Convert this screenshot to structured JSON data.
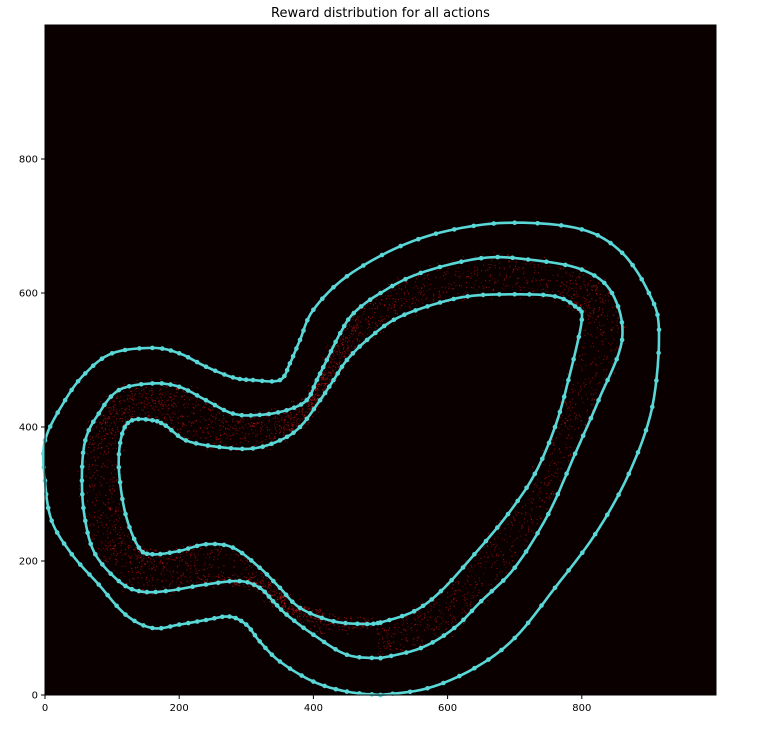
{
  "chart_data": {
    "type": "scatter",
    "title": "Reward distribution for all actions",
    "xlabel": "",
    "ylabel": "",
    "xlim": [
      0,
      1000
    ],
    "ylim": [
      0,
      1000
    ],
    "x_ticks": [
      0,
      200,
      400,
      600,
      800
    ],
    "y_ticks": [
      0,
      200,
      400,
      600,
      800
    ],
    "grid": false,
    "background_color": "#0b0000",
    "line_color": "#5ad8d8",
    "reward_color": "#ff1a1a",
    "series": [
      {
        "role": "outer boundary",
        "points": [
          [
            500,
            0
          ],
          [
            570,
            10
          ],
          [
            640,
            40
          ],
          [
            700,
            85
          ],
          [
            760,
            160
          ],
          [
            820,
            240
          ],
          [
            870,
            330
          ],
          [
            905,
            430
          ],
          [
            915,
            545
          ],
          [
            900,
            600
          ],
          [
            860,
            660
          ],
          [
            800,
            695
          ],
          [
            700,
            705
          ],
          [
            610,
            695
          ],
          [
            530,
            670
          ],
          [
            450,
            625
          ],
          [
            400,
            575
          ],
          [
            380,
            530
          ],
          [
            365,
            495
          ],
          [
            350,
            470
          ],
          [
            310,
            470
          ],
          [
            280,
            474
          ],
          [
            240,
            490
          ],
          [
            200,
            510
          ],
          [
            160,
            518
          ],
          [
            100,
            510
          ],
          [
            60,
            480
          ],
          [
            30,
            440
          ],
          [
            0,
            380
          ],
          [
            0,
            320
          ],
          [
            10,
            260
          ],
          [
            40,
            210
          ],
          [
            80,
            165
          ],
          [
            120,
            120
          ],
          [
            160,
            100
          ],
          [
            200,
            105
          ],
          [
            240,
            112
          ],
          [
            275,
            117
          ],
          [
            300,
            105
          ],
          [
            320,
            80
          ],
          [
            350,
            50
          ],
          [
            400,
            20
          ],
          [
            450,
            5
          ],
          [
            500,
            0
          ]
        ]
      },
      {
        "role": "center line",
        "points": [
          [
            500,
            55
          ],
          [
            560,
            70
          ],
          [
            610,
            100
          ],
          [
            650,
            140
          ],
          [
            700,
            190
          ],
          [
            750,
            270
          ],
          [
            790,
            360
          ],
          [
            825,
            440
          ],
          [
            860,
            530
          ],
          [
            845,
            600
          ],
          [
            800,
            635
          ],
          [
            720,
            650
          ],
          [
            650,
            652
          ],
          [
            560,
            630
          ],
          [
            500,
            600
          ],
          [
            460,
            570
          ],
          [
            440,
            540
          ],
          [
            420,
            500
          ],
          [
            405,
            470
          ],
          [
            390,
            440
          ],
          [
            360,
            425
          ],
          [
            320,
            418
          ],
          [
            280,
            420
          ],
          [
            240,
            440
          ],
          [
            200,
            460
          ],
          [
            160,
            465
          ],
          [
            110,
            455
          ],
          [
            80,
            420
          ],
          [
            60,
            380
          ],
          [
            55,
            320
          ],
          [
            60,
            260
          ],
          [
            75,
            210
          ],
          [
            110,
            170
          ],
          [
            140,
            155
          ],
          [
            180,
            155
          ],
          [
            240,
            165
          ],
          [
            290,
            170
          ],
          [
            320,
            160
          ],
          [
            340,
            140
          ],
          [
            360,
            120
          ],
          [
            400,
            90
          ],
          [
            450,
            60
          ],
          [
            500,
            55
          ]
        ]
      },
      {
        "role": "inner boundary",
        "points": [
          [
            500,
            108
          ],
          [
            550,
            125
          ],
          [
            590,
            155
          ],
          [
            640,
            210
          ],
          [
            690,
            270
          ],
          [
            730,
            330
          ],
          [
            760,
            400
          ],
          [
            780,
            470
          ],
          [
            800,
            560
          ],
          [
            790,
            580
          ],
          [
            760,
            595
          ],
          [
            700,
            598
          ],
          [
            630,
            595
          ],
          [
            570,
            580
          ],
          [
            520,
            560
          ],
          [
            480,
            530
          ],
          [
            450,
            500
          ],
          [
            430,
            470
          ],
          [
            410,
            440
          ],
          [
            380,
            400
          ],
          [
            350,
            380
          ],
          [
            310,
            368
          ],
          [
            260,
            370
          ],
          [
            210,
            380
          ],
          [
            180,
            402
          ],
          [
            160,
            410
          ],
          [
            130,
            410
          ],
          [
            115,
            390
          ],
          [
            110,
            340
          ],
          [
            120,
            270
          ],
          [
            140,
            220
          ],
          [
            160,
            210
          ],
          [
            200,
            215
          ],
          [
            240,
            225
          ],
          [
            280,
            220
          ],
          [
            320,
            190
          ],
          [
            350,
            160
          ],
          [
            380,
            130
          ],
          [
            430,
            110
          ],
          [
            480,
            106
          ],
          [
            500,
            108
          ]
        ]
      }
    ]
  }
}
